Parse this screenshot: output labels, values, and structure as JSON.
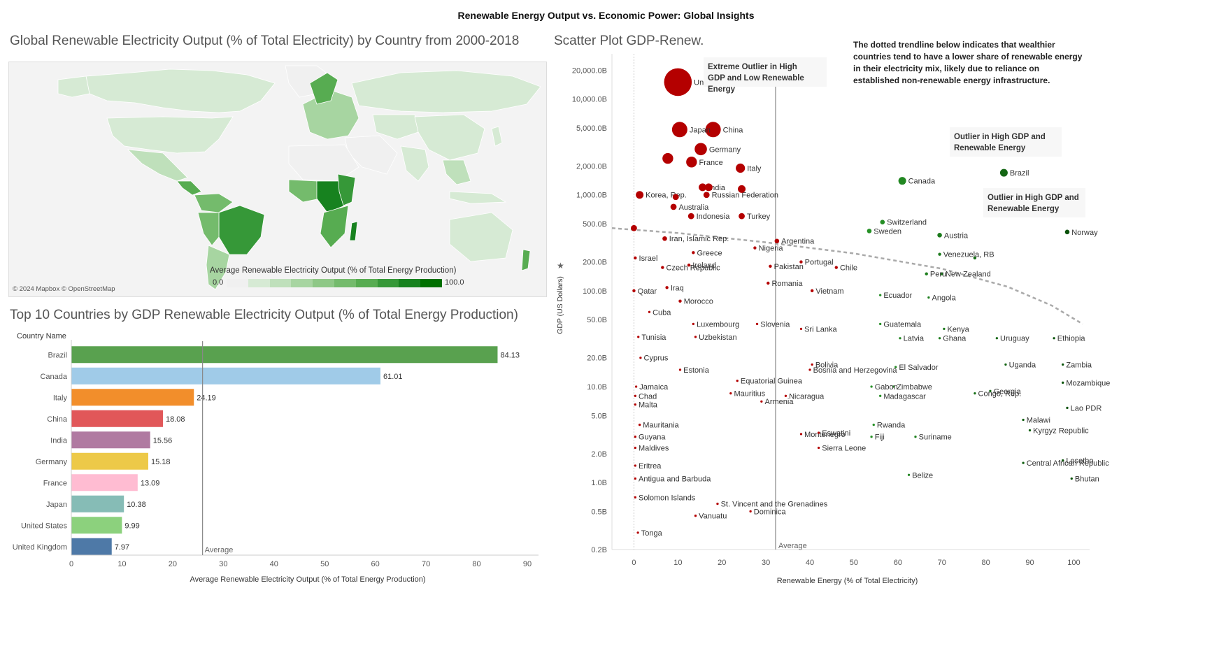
{
  "dashboard_title": "Renewable Energy Output vs. Economic Power: Global Insights",
  "map": {
    "title": "Global Renewable Electricity Output (% of Total Electricity) by Country from 2000-2018",
    "legend_title": "Average Renewable Electricity Output (% of Total Energy Production)",
    "legend_min": "0.0",
    "legend_max": "100.0",
    "legend_colors": [
      "#f0f0f0",
      "#d6ead4",
      "#bfe0bb",
      "#a7d5a1",
      "#8ec886",
      "#74bb6c",
      "#57ac51",
      "#369838",
      "#17821f",
      "#007000"
    ],
    "attribution": "© 2024 Mapbox © OpenStreetMap"
  },
  "bar_panel": {
    "title": "Top 10 Countries by GDP Renewable Electricity Output (% of Total Energy Production)",
    "row_header": "Country Name",
    "average_label": "Average"
  },
  "scatter_panel": {
    "title": "Scatter Plot GDP-Renew.",
    "note": "The dotted trendline below indicates that wealthier countries tend to have a lower share of renewable energy in their electricity mix, likely due to reliance on established non-renewable energy infrastructure.",
    "annotations": {
      "us": "Extreme Outlier in High GDP and Low Renewable Energy",
      "brazil": "Outlier in High GDP and Renewable Energy",
      "norway": "Outlier in High GDP and Renewable Energy"
    },
    "average_label": "Average"
  },
  "chart_data": [
    {
      "type": "bar",
      "orientation": "horizontal",
      "title": "Top 10 Countries by GDP Renewable Electricity Output (% of Total Energy Production)",
      "xlabel": "Average Renewable Electricity Output (% of Total Energy Production)",
      "ylabel": "Country Name",
      "categories": [
        "Brazil",
        "Canada",
        "Italy",
        "China",
        "India",
        "Germany",
        "France",
        "Japan",
        "United States",
        "United Kingdom"
      ],
      "values": [
        84.13,
        61.01,
        24.19,
        18.08,
        15.56,
        15.18,
        13.09,
        10.38,
        9.99,
        7.97
      ],
      "value_labels": [
        "84.13",
        "61.01",
        "24.19",
        "18.08",
        "15.56",
        "15.18",
        "13.09",
        "10.38",
        "9.99",
        "7.97"
      ],
      "colors": [
        "#59a14f",
        "#a0cbe8",
        "#f28e2b",
        "#e15759",
        "#b07aa1",
        "#edc948",
        "#ffbcd2",
        "#86bcb6",
        "#8cd17d",
        "#4e79a7"
      ],
      "xlim": [
        0,
        90
      ],
      "xticks": [
        0,
        10,
        20,
        30,
        40,
        50,
        60,
        70,
        80,
        90
      ],
      "reference_line": {
        "label": "Average",
        "value": 25.9
      },
      "grid": false
    },
    {
      "type": "scatter",
      "title": "Scatter Plot GDP-Renew.",
      "xlabel": "Renewable Energy (% of Total Electricity)",
      "ylabel": "GDP (US Dollars)",
      "y_scale": "log",
      "xlim": [
        -5,
        102
      ],
      "ylim": [
        0.2,
        25000
      ],
      "xticks": [
        0,
        10,
        20,
        30,
        40,
        50,
        60,
        70,
        80,
        90,
        100
      ],
      "yticks": [
        0.2,
        0.5,
        1,
        2,
        5,
        10,
        20,
        50,
        100,
        200,
        500,
        1000,
        2000,
        5000,
        10000,
        20000
      ],
      "ytick_labels": [
        "0.2B",
        "0.5B",
        "1.0B",
        "2.0B",
        "5.0B",
        "10.0B",
        "20.0B",
        "50.0B",
        "100.0B",
        "200.0B",
        "500.0B",
        "1,000.0B",
        "2,000.0B",
        "5,000.0B",
        "10,000.0B",
        "20,000.0B"
      ],
      "reference_line": {
        "label": "Average",
        "value": 32.2
      },
      "trendline": {
        "style": "dotted",
        "points": [
          [
            -5,
            450
          ],
          [
            10,
            400
          ],
          [
            30,
            320
          ],
          [
            50,
            245
          ],
          [
            70,
            170
          ],
          [
            85,
            110
          ],
          [
            95,
            70
          ],
          [
            102,
            45
          ]
        ]
      },
      "color_encoding": "red = low renewable share, green = high renewable share",
      "points": [
        {
          "label": "United States",
          "x": 10,
          "y": 15000,
          "size": 18
        },
        {
          "label": "China",
          "x": 18,
          "y": 4800,
          "size": 10
        },
        {
          "label": "Japan",
          "x": 10.4,
          "y": 4800,
          "size": 10
        },
        {
          "label": "Germany",
          "x": 15.2,
          "y": 3000,
          "size": 8
        },
        {
          "label": "",
          "x": 7.7,
          "y": 2400,
          "size": 7
        },
        {
          "label": "France",
          "x": 13.1,
          "y": 2200,
          "size": 7
        },
        {
          "label": "Italy",
          "x": 24.2,
          "y": 1900,
          "size": 6
        },
        {
          "label": "India",
          "x": 15.6,
          "y": 1200,
          "size": 5
        },
        {
          "label": "",
          "x": 17,
          "y": 1200,
          "size": 5
        },
        {
          "label": "Russian Federation",
          "x": 16.5,
          "y": 1000,
          "size": 4
        },
        {
          "label": "",
          "x": 24.5,
          "y": 1150,
          "size": 5
        },
        {
          "label": "Korea, Rep.",
          "x": 1.3,
          "y": 1000,
          "size": 5
        },
        {
          "label": "",
          "x": 9.5,
          "y": 950,
          "size": 4
        },
        {
          "label": "Australia",
          "x": 9,
          "y": 750,
          "size": 4
        },
        {
          "label": "Indonesia",
          "x": 13,
          "y": 600,
          "size": 4
        },
        {
          "label": "Turkey",
          "x": 24.5,
          "y": 600,
          "size": 4
        },
        {
          "label": "",
          "x": 0,
          "y": 450,
          "size": 4
        },
        {
          "label": "Iran, Islamic Rep.",
          "x": 7,
          "y": 350,
          "size": 3
        },
        {
          "label": "Argentina",
          "x": 32.5,
          "y": 330,
          "size": 3
        },
        {
          "label": "Greece",
          "x": 13.5,
          "y": 250,
          "size": 2
        },
        {
          "label": "Nigeria",
          "x": 27.5,
          "y": 280,
          "size": 2
        },
        {
          "label": "Israel",
          "x": 0.3,
          "y": 220,
          "size": 2
        },
        {
          "label": "Ireland",
          "x": 12.5,
          "y": 185,
          "size": 2
        },
        {
          "label": "Czech Republic",
          "x": 6.5,
          "y": 175,
          "size": 2
        },
        {
          "label": "Pakistan",
          "x": 31,
          "y": 180,
          "size": 2
        },
        {
          "label": "Portugal",
          "x": 38,
          "y": 200,
          "size": 2
        },
        {
          "label": "Chile",
          "x": 46,
          "y": 175,
          "size": 2
        },
        {
          "label": "Romania",
          "x": 30.5,
          "y": 120,
          "size": 2
        },
        {
          "label": "Iraq",
          "x": 7.5,
          "y": 108,
          "size": 2
        },
        {
          "label": "Qatar",
          "x": 0,
          "y": 100,
          "size": 2
        },
        {
          "label": "Vietnam",
          "x": 40.5,
          "y": 100,
          "size": 2
        },
        {
          "label": "Morocco",
          "x": 10.5,
          "y": 78,
          "size": 2
        },
        {
          "label": "Cuba",
          "x": 3.5,
          "y": 60,
          "size": 1.5
        },
        {
          "label": "Luxembourg",
          "x": 13.5,
          "y": 45,
          "size": 1.5
        },
        {
          "label": "Slovenia",
          "x": 28,
          "y": 45,
          "size": 1.5
        },
        {
          "label": "Sri Lanka",
          "x": 38,
          "y": 40,
          "size": 1.5
        },
        {
          "label": "Tunisia",
          "x": 1,
          "y": 33,
          "size": 1.5
        },
        {
          "label": "Uzbekistan",
          "x": 14,
          "y": 33,
          "size": 1.5
        },
        {
          "label": "Cyprus",
          "x": 1.5,
          "y": 20,
          "size": 1.5
        },
        {
          "label": "Estonia",
          "x": 10.5,
          "y": 15,
          "size": 1.5
        },
        {
          "label": "Bosnia and Herzegovina",
          "x": 40,
          "y": 15,
          "size": 1.5
        },
        {
          "label": "Bolivia",
          "x": 40.5,
          "y": 17,
          "size": 1.5
        },
        {
          "label": "Equatorial Guinea",
          "x": 23.5,
          "y": 11.5,
          "size": 1.5
        },
        {
          "label": "Jamaica",
          "x": 0.5,
          "y": 10,
          "size": 1.5
        },
        {
          "label": "Mauritius",
          "x": 22,
          "y": 8.5,
          "size": 1.5
        },
        {
          "label": "Nicaragua",
          "x": 34.5,
          "y": 8,
          "size": 1.5
        },
        {
          "label": "Armenia",
          "x": 29,
          "y": 7,
          "size": 1.5
        },
        {
          "label": "Chad",
          "x": 0.3,
          "y": 8,
          "size": 1.5
        },
        {
          "label": "Malta",
          "x": 0.3,
          "y": 6.5,
          "size": 1.5
        },
        {
          "label": "Mauritania",
          "x": 1.3,
          "y": 4,
          "size": 1.5
        },
        {
          "label": "Montenegro",
          "x": 38,
          "y": 3.2,
          "size": 1.5
        },
        {
          "label": "Eswatini",
          "x": 42,
          "y": 3.3,
          "size": 1.5
        },
        {
          "label": "Guyana",
          "x": 0.3,
          "y": 3,
          "size": 1.5
        },
        {
          "label": "Maldives",
          "x": 0.3,
          "y": 2.3,
          "size": 1.5
        },
        {
          "label": "Sierra Leone",
          "x": 42,
          "y": 2.3,
          "size": 1.5
        },
        {
          "label": "Eritrea",
          "x": 0.3,
          "y": 1.5,
          "size": 1.5
        },
        {
          "label": "Antigua and Barbuda",
          "x": 0.3,
          "y": 1.1,
          "size": 1.5
        },
        {
          "label": "Solomon Islands",
          "x": 0.3,
          "y": 0.7,
          "size": 1.5
        },
        {
          "label": "St. Vincent and the Grenadines",
          "x": 19,
          "y": 0.6,
          "size": 1.5
        },
        {
          "label": "Vanuatu",
          "x": 14,
          "y": 0.45,
          "size": 1.5
        },
        {
          "label": "Dominica",
          "x": 26.5,
          "y": 0.5,
          "size": 1.5
        },
        {
          "label": "Tonga",
          "x": 0.9,
          "y": 0.3,
          "size": 1.5
        },
        {
          "label": "Canada",
          "x": 61,
          "y": 1400,
          "size": 5
        },
        {
          "label": "Brazil",
          "x": 84.1,
          "y": 1700,
          "size": 5
        },
        {
          "label": "Switzerland",
          "x": 56.5,
          "y": 520,
          "size": 3
        },
        {
          "label": "Sweden",
          "x": 53.5,
          "y": 420,
          "size": 3
        },
        {
          "label": "Austria",
          "x": 69.5,
          "y": 380,
          "size": 3
        },
        {
          "label": "Norway",
          "x": 98.5,
          "y": 410,
          "size": 3
        },
        {
          "label": "Venezuela, RB",
          "x": 69.5,
          "y": 240,
          "size": 2
        },
        {
          "label": "",
          "x": 77.5,
          "y": 220,
          "size": 2
        },
        {
          "label": "New Zealand",
          "x": 70,
          "y": 150,
          "size": 2
        },
        {
          "label": "Peru",
          "x": 66.5,
          "y": 150,
          "size": 2
        },
        {
          "label": "Ecuador",
          "x": 56,
          "y": 90,
          "size": 1.5
        },
        {
          "label": "Angola",
          "x": 67,
          "y": 85,
          "size": 1.5
        },
        {
          "label": "Guatemala",
          "x": 56,
          "y": 45,
          "size": 1.5
        },
        {
          "label": "Kenya",
          "x": 70.5,
          "y": 40,
          "size": 1.5
        },
        {
          "label": "Latvia",
          "x": 60.5,
          "y": 32,
          "size": 1.5
        },
        {
          "label": "Ghana",
          "x": 69.5,
          "y": 32,
          "size": 1.5
        },
        {
          "label": "Uruguay",
          "x": 82.5,
          "y": 32,
          "size": 1.5
        },
        {
          "label": "Ethiopia",
          "x": 95.5,
          "y": 32,
          "size": 1.5
        },
        {
          "label": "El Salvador",
          "x": 59.5,
          "y": 16,
          "size": 1.5
        },
        {
          "label": "Uganda",
          "x": 84.5,
          "y": 17,
          "size": 1.5
        },
        {
          "label": "Zambia",
          "x": 97.5,
          "y": 17,
          "size": 1.5
        },
        {
          "label": "Zimbabwe",
          "x": 59,
          "y": 10,
          "size": 1.5
        },
        {
          "label": "Gabon",
          "x": 54,
          "y": 10,
          "size": 1.5
        },
        {
          "label": "Mozambique",
          "x": 97.5,
          "y": 11,
          "size": 1.5
        },
        {
          "label": "Madagascar",
          "x": 56,
          "y": 8,
          "size": 1.5
        },
        {
          "label": "Congo, Rep.",
          "x": 77.5,
          "y": 8.5,
          "size": 1.5
        },
        {
          "label": "Georgia",
          "x": 81,
          "y": 9,
          "size": 1.5
        },
        {
          "label": "Lao PDR",
          "x": 98.5,
          "y": 6,
          "size": 1.5
        },
        {
          "label": "Malawi",
          "x": 88.5,
          "y": 4.5,
          "size": 1.5
        },
        {
          "label": "Rwanda",
          "x": 54.5,
          "y": 4,
          "size": 1.5
        },
        {
          "label": "Kyrgyz Republic",
          "x": 90,
          "y": 3.5,
          "size": 1.5
        },
        {
          "label": "Fiji",
          "x": 54,
          "y": 3,
          "size": 1.5
        },
        {
          "label": "Suriname",
          "x": 64,
          "y": 3,
          "size": 1.5
        },
        {
          "label": "Central African Republic",
          "x": 88.5,
          "y": 1.6,
          "size": 1.5
        },
        {
          "label": "Lesotho",
          "x": 97.5,
          "y": 1.7,
          "size": 1.5
        },
        {
          "label": "Belize",
          "x": 62.5,
          "y": 1.2,
          "size": 1.5
        },
        {
          "label": "Bhutan",
          "x": 99.5,
          "y": 1.1,
          "size": 1.5
        }
      ]
    }
  ]
}
